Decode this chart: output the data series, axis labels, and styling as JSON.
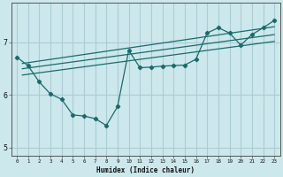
{
  "xlabel": "Humidex (Indice chaleur)",
  "bg_color": "#cce8ec",
  "grid_color": "#aacdd4",
  "line_color": "#1a6b6b",
  "xlim": [
    -0.5,
    23.5
  ],
  "ylim": [
    4.85,
    7.75
  ],
  "yticks": [
    5,
    6,
    7
  ],
  "xticks": [
    0,
    1,
    2,
    3,
    4,
    5,
    6,
    7,
    8,
    9,
    10,
    11,
    12,
    13,
    14,
    15,
    16,
    17,
    18,
    19,
    20,
    21,
    22,
    23
  ],
  "main_x": [
    0,
    1,
    2,
    3,
    4,
    5,
    6,
    7,
    8,
    9,
    10,
    11,
    12,
    13,
    14,
    15,
    16,
    17,
    18,
    19,
    20,
    21,
    22,
    23
  ],
  "main_y": [
    6.72,
    6.56,
    6.25,
    6.02,
    5.92,
    5.62,
    5.6,
    5.55,
    5.42,
    5.78,
    6.85,
    6.52,
    6.53,
    6.55,
    6.56,
    6.57,
    6.68,
    7.18,
    7.28,
    7.18,
    6.95,
    7.15,
    7.28,
    7.42
  ],
  "trend_lines": [
    {
      "x_start": 0.5,
      "y_start": 6.38,
      "x_end": 23,
      "y_end": 7.02
    },
    {
      "x_start": 0.5,
      "y_start": 6.5,
      "x_end": 23,
      "y_end": 7.15
    },
    {
      "x_start": 0.5,
      "y_start": 6.6,
      "x_end": 23,
      "y_end": 7.3
    }
  ]
}
